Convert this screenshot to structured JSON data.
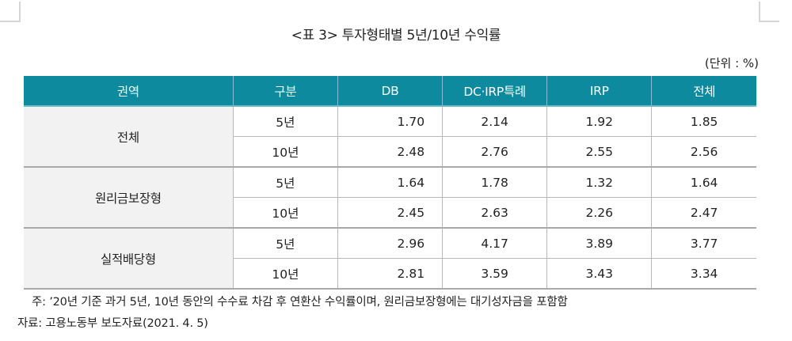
{
  "title": "<표 3> 투자형태별 5년/10년 수익률",
  "unit": "(단위 : %)",
  "colors": {
    "header_bg": "#0e8a9e",
    "header_text": "#ffffff",
    "region_bg": "#f2f2f2",
    "grid": "#b9b9b9"
  },
  "table": {
    "headers": [
      "권역",
      "구분",
      "DB",
      "DC·IRP특례",
      "IRP",
      "전체"
    ],
    "groups": [
      {
        "region": "전체",
        "rows": [
          {
            "period": "5년",
            "db": "1.70",
            "dc_irp": "2.14",
            "irp": "1.92",
            "total": "1.85"
          },
          {
            "period": "10년",
            "db": "2.48",
            "dc_irp": "2.76",
            "irp": "2.55",
            "total": "2.56"
          }
        ]
      },
      {
        "region": "원리금보장형",
        "rows": [
          {
            "period": "5년",
            "db": "1.64",
            "dc_irp": "1.78",
            "irp": "1.32",
            "total": "1.64"
          },
          {
            "period": "10년",
            "db": "2.45",
            "dc_irp": "2.63",
            "irp": "2.26",
            "total": "2.47"
          }
        ]
      },
      {
        "region": "실적배당형",
        "rows": [
          {
            "period": "5년",
            "db": "2.96",
            "dc_irp": "4.17",
            "irp": "3.89",
            "total": "3.77"
          },
          {
            "period": "10년",
            "db": "2.81",
            "dc_irp": "3.59",
            "irp": "3.43",
            "total": "3.34"
          }
        ]
      }
    ]
  },
  "note": "주: ’20년 기준 과거 5년, 10년 동안의 수수료 차감 후 연환산 수익률이며, 원리금보장형에는 대기성자금을 포함함",
  "source": "자료: 고용노동부 보도자료(2021. 4. 5)"
}
